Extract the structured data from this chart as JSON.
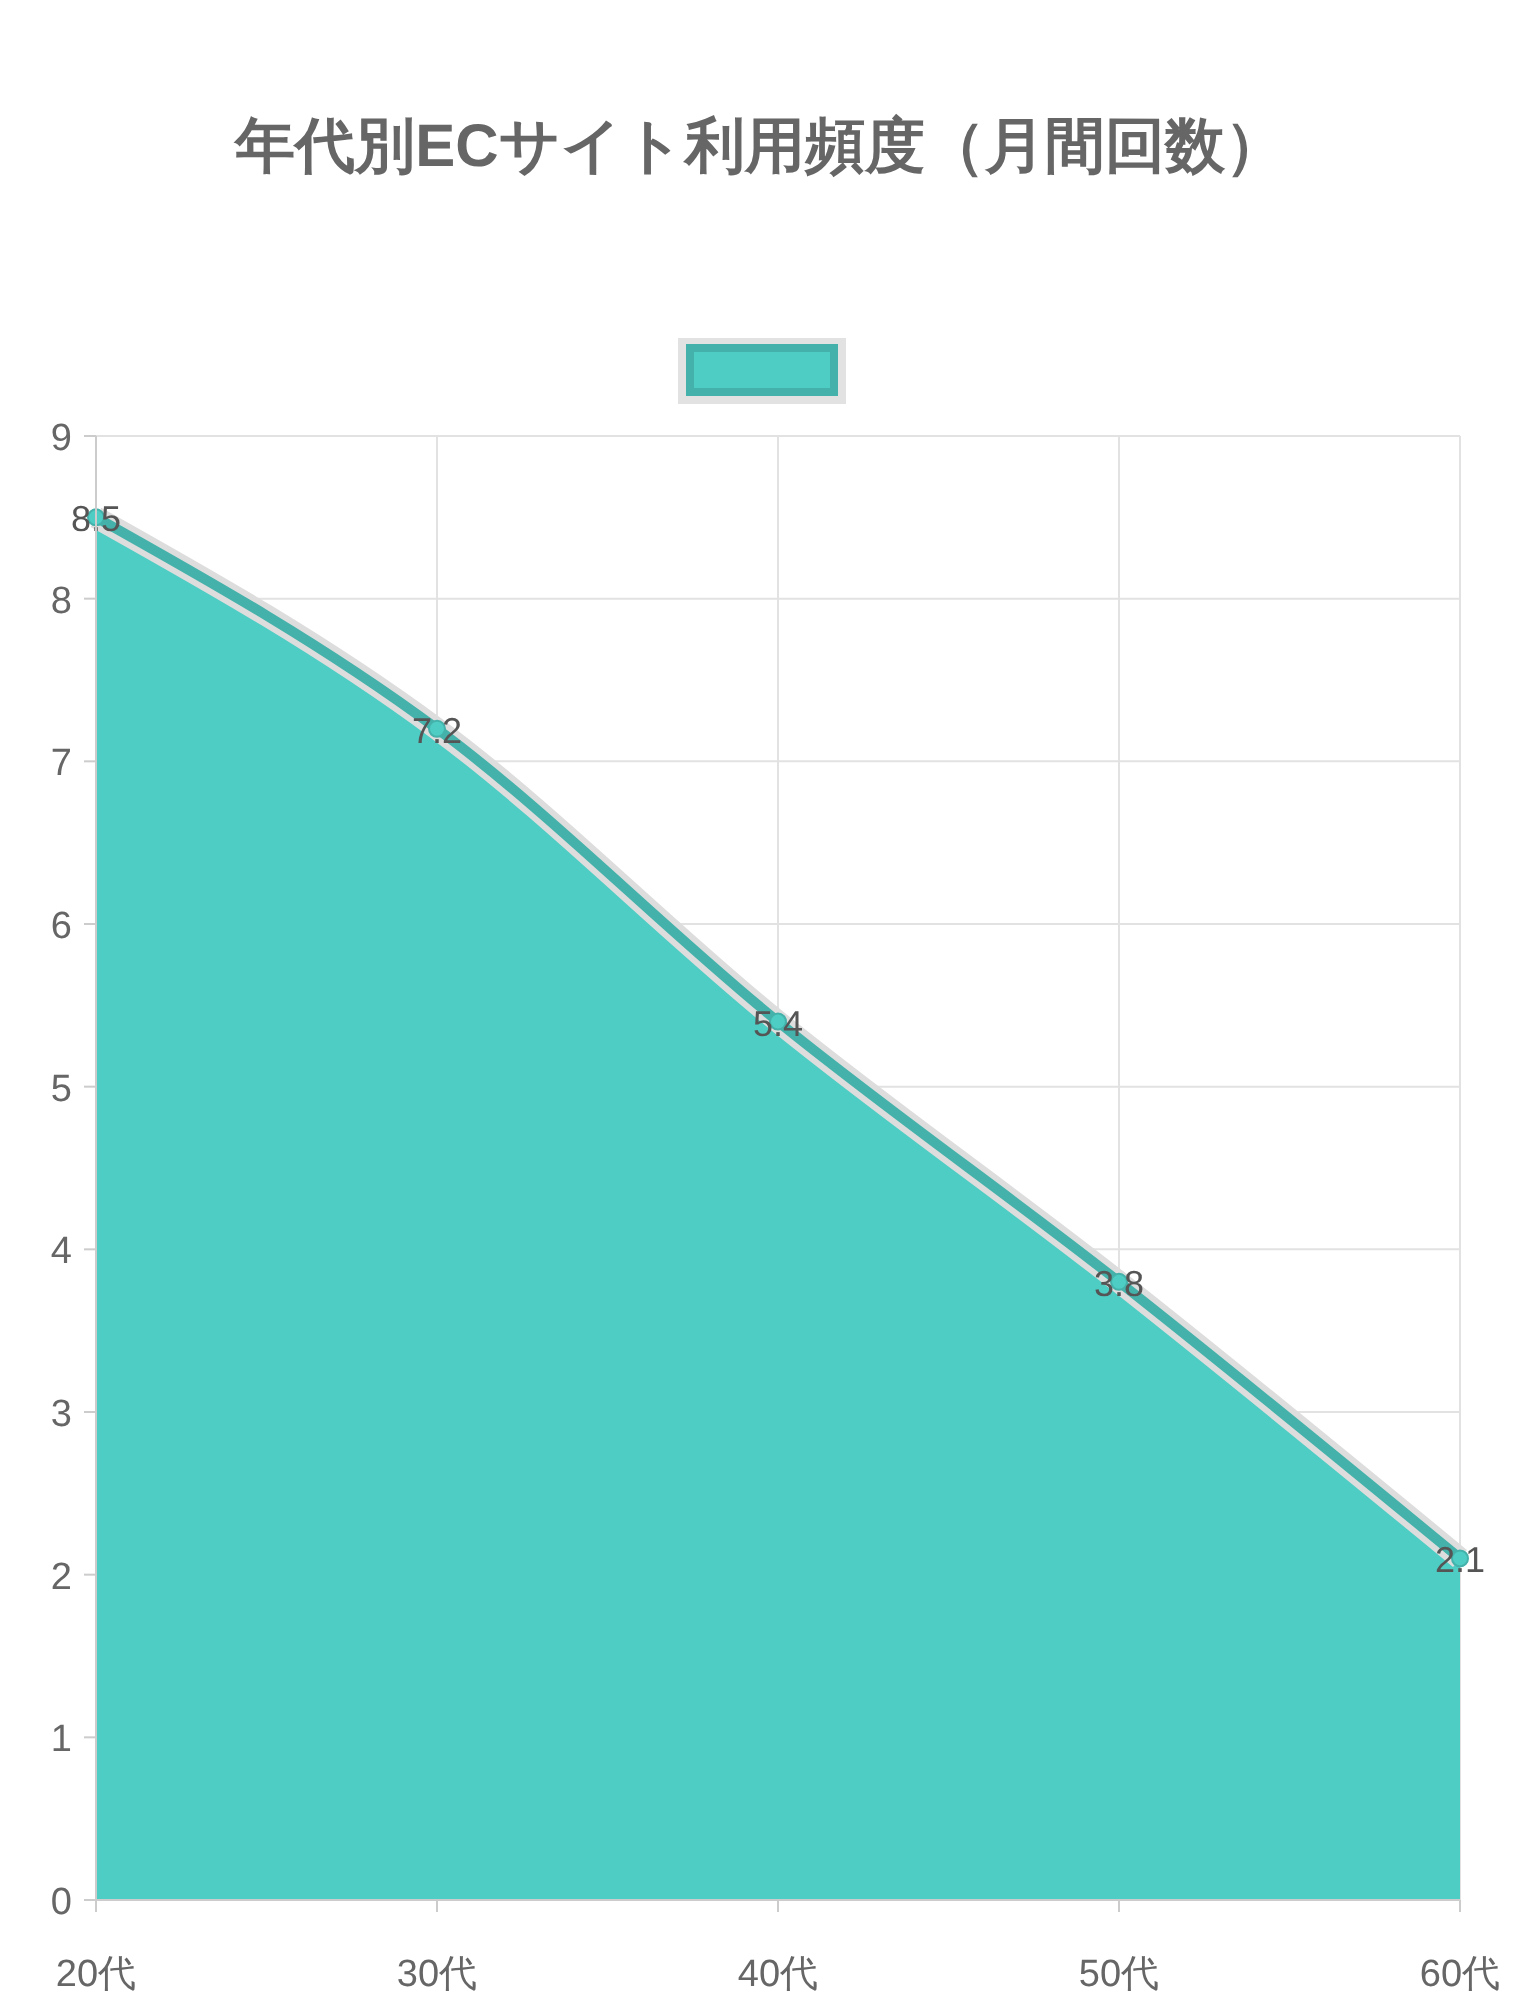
{
  "chart_data": {
    "type": "area",
    "title": "年代別ECサイト利用頻度（月間回数）",
    "categories": [
      "20代",
      "30代",
      "40代",
      "50代",
      "60代"
    ],
    "series": [
      {
        "color": "#4ecdc4",
        "values": [
          8.5,
          7.2,
          5.4,
          3.8,
          2.1
        ]
      }
    ],
    "ylim": [
      0,
      9
    ],
    "yticks": [
      0,
      1,
      2,
      3,
      4,
      5,
      6,
      7,
      8,
      9
    ],
    "grid": true,
    "data_labels": true,
    "marker": "circle"
  }
}
